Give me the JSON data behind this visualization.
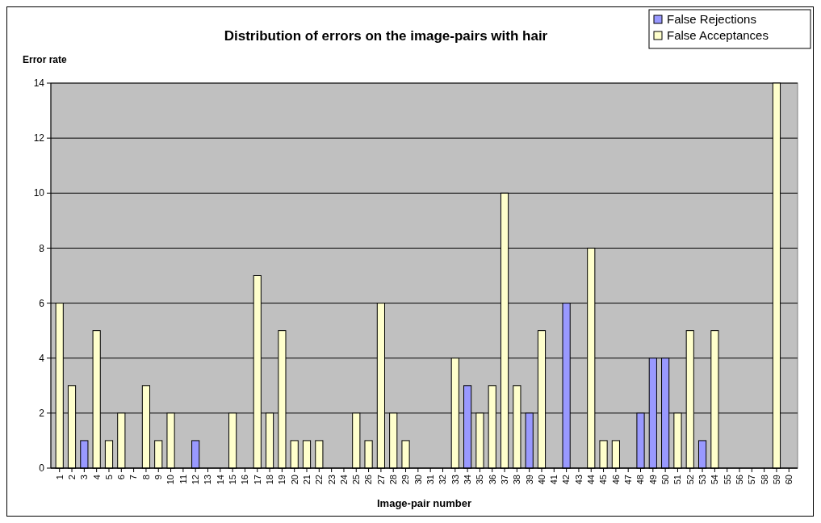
{
  "chart_data": {
    "type": "bar",
    "title": "Distribution of errors on the image-pairs with hair",
    "xlabel": "Image-pair number",
    "ylabel": "Error rate",
    "categories": [
      "1",
      "2",
      "3",
      "4",
      "5",
      "6",
      "7",
      "8",
      "9",
      "10",
      "11",
      "12",
      "13",
      "14",
      "15",
      "16",
      "17",
      "18",
      "19",
      "20",
      "21",
      "22",
      "23",
      "24",
      "25",
      "26",
      "27",
      "28",
      "29",
      "30",
      "31",
      "32",
      "33",
      "34",
      "35",
      "36",
      "37",
      "38",
      "39",
      "40",
      "41",
      "42",
      "43",
      "44",
      "45",
      "46",
      "47",
      "48",
      "49",
      "50",
      "51",
      "52",
      "53",
      "54",
      "55",
      "56",
      "57",
      "58",
      "59",
      "60"
    ],
    "series": [
      {
        "name": "False Rejections",
        "color": "#9999ff",
        "values": [
          0,
          0,
          1,
          0,
          0,
          0,
          0,
          0,
          0,
          0,
          0,
          1,
          0,
          0,
          0,
          0,
          0,
          0,
          0,
          0,
          0,
          0,
          0,
          0,
          0,
          0,
          0,
          0,
          0,
          0,
          0,
          0,
          0,
          3,
          0,
          0,
          0,
          0,
          2,
          0,
          0,
          6,
          0,
          0,
          0,
          0,
          0,
          2,
          4,
          4,
          0,
          0,
          1,
          0,
          0,
          0,
          0,
          0,
          0,
          0
        ]
      },
      {
        "name": "False Acceptances",
        "color": "#ffffcc",
        "values": [
          6,
          3,
          0,
          5,
          1,
          2,
          0,
          3,
          1,
          2,
          0,
          0,
          0,
          0,
          2,
          0,
          7,
          2,
          5,
          1,
          1,
          1,
          0,
          0,
          2,
          1,
          6,
          2,
          1,
          0,
          0,
          0,
          4,
          0,
          2,
          3,
          10,
          3,
          0,
          5,
          0,
          0,
          0,
          8,
          1,
          1,
          0,
          0,
          0,
          0,
          2,
          5,
          0,
          5,
          0,
          0,
          0,
          0,
          14,
          0
        ]
      }
    ],
    "stacked": true,
    "ylim": [
      0,
      14
    ],
    "yticks": [
      0,
      2,
      4,
      6,
      8,
      10,
      12,
      14
    ],
    "grid": "y",
    "legend": "top right"
  }
}
